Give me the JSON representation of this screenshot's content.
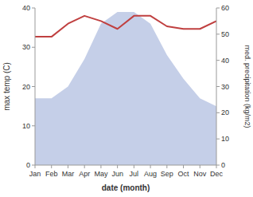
{
  "chart_data": {
    "type": "area",
    "categories": [
      "Jan",
      "Feb",
      "Mar",
      "Apr",
      "May",
      "Jun",
      "Jul",
      "Aug",
      "Sep",
      "Oct",
      "Nov",
      "Dec"
    ],
    "series": [
      {
        "type": "area",
        "color": "#c5cfe8",
        "values": [
          17,
          17,
          20,
          27,
          36,
          39,
          39,
          36,
          28,
          22,
          17,
          15
        ]
      },
      {
        "type": "line",
        "color": "#c04040",
        "axis": "y2",
        "values": [
          49,
          49,
          54,
          57,
          55,
          52,
          57,
          57,
          53,
          52,
          52,
          55
        ]
      }
    ],
    "ylim": [
      0,
      40
    ],
    "yticks": [
      0,
      10,
      20,
      30,
      40
    ],
    "y2lim": [
      0,
      60
    ],
    "y2ticks": [
      0,
      10,
      20,
      30,
      40,
      50,
      60
    ],
    "y_label": "max temp (C)",
    "y2_label": "med. precipitation (kg/m2)",
    "x_label": "date (month)",
    "grid": false
  }
}
